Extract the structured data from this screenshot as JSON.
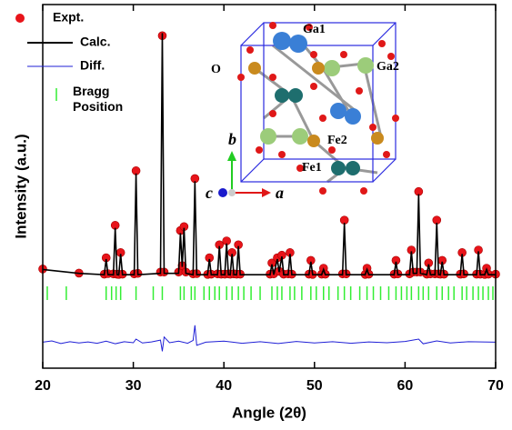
{
  "chart_data": {
    "type": "line",
    "xlabel": "Angle (2θ)",
    "ylabel": "Intensity (a.u.)",
    "xlim": [
      20,
      70
    ],
    "xticks": [
      20,
      30,
      40,
      50,
      60,
      70
    ],
    "ylim": [
      -35,
      105
    ],
    "series": [
      {
        "name": "Expt.",
        "type": "scatter",
        "color": "#e8141a",
        "x": [
          20,
          24,
          26.8,
          27.0,
          27.2,
          27.8,
          28.0,
          28.2,
          28.4,
          28.6,
          28.8,
          30.1,
          30.3,
          30.5,
          33.0,
          33.2,
          33.4,
          35.0,
          35.2,
          35.4,
          35.6,
          35.8,
          36.6,
          36.8,
          37.0,
          38.2,
          38.4,
          38.6,
          39.3,
          39.5,
          39.7,
          40.1,
          40.3,
          40.5,
          40.7,
          40.9,
          41.1,
          41.4,
          41.6,
          41.8,
          45.1,
          45.3,
          45.5,
          45.9,
          46.1,
          46.4,
          46.6,
          47.1,
          47.3,
          47.5,
          49.4,
          49.6,
          49.8,
          50.8,
          51.0,
          51.2,
          53.1,
          53.3,
          53.5,
          55.6,
          55.8,
          56.0,
          58.8,
          59.0,
          59.2,
          60.5,
          60.7,
          60.9,
          61.3,
          61.5,
          61.7,
          62.4,
          62.6,
          62.8,
          63.3,
          63.5,
          63.7,
          63.9,
          64.1,
          64.3,
          66.1,
          66.3,
          66.5,
          67.9,
          68.1,
          68.3,
          68.8,
          69.0,
          69.2,
          70
        ],
        "values": [
          3.2,
          1.6,
          1.2,
          7.5,
          1.4,
          1.3,
          20,
          1.2,
          1.1,
          9.5,
          1.2,
          1.3,
          41,
          1.5,
          2,
          93,
          2,
          2,
          18,
          4.5,
          19.5,
          2,
          1.3,
          38,
          1.4,
          1.1,
          7.5,
          1.2,
          1.3,
          12.5,
          1.2,
          1.2,
          14,
          1.3,
          1.2,
          9.5,
          1.3,
          1.2,
          12.5,
          1.2,
          1.2,
          5.5,
          1.3,
          7.5,
          2.3,
          8.5,
          1.2,
          1.3,
          9.5,
          1.2,
          1.2,
          6.5,
          1.1,
          1.2,
          3.5,
          1.2,
          1.3,
          22,
          1.3,
          1.1,
          3.5,
          1.2,
          1.2,
          6.5,
          1.3,
          1.3,
          10.5,
          2,
          2,
          33,
          2,
          1.2,
          5.5,
          1.3,
          1.3,
          22,
          1.3,
          1.2,
          6.5,
          1.2,
          1.2,
          9.5,
          1.3,
          1.2,
          10.5,
          1.2,
          1.1,
          3.5,
          1.2,
          1.2
        ]
      },
      {
        "name": "Calc.",
        "color": "#000000",
        "x": [
          20,
          24,
          26.8,
          27.0,
          27.2,
          27.8,
          28.0,
          28.2,
          28.4,
          28.6,
          28.8,
          30.1,
          30.3,
          30.5,
          33.0,
          33.2,
          33.4,
          35.0,
          35.2,
          35.4,
          35.6,
          35.8,
          36.6,
          36.8,
          37.0,
          38.2,
          38.4,
          38.6,
          39.3,
          39.5,
          39.7,
          40.1,
          40.3,
          40.5,
          40.7,
          40.9,
          41.1,
          41.4,
          41.6,
          41.8,
          45.1,
          45.3,
          45.5,
          45.9,
          46.1,
          46.4,
          46.6,
          47.1,
          47.3,
          47.5,
          49.4,
          49.6,
          49.8,
          50.8,
          51.0,
          51.2,
          53.1,
          53.3,
          53.5,
          55.6,
          55.8,
          56.0,
          58.8,
          59.0,
          59.2,
          60.5,
          60.7,
          60.9,
          61.3,
          61.5,
          61.7,
          62.4,
          62.6,
          62.8,
          63.3,
          63.5,
          63.7,
          63.9,
          64.1,
          64.3,
          66.1,
          66.3,
          66.5,
          67.9,
          68.1,
          68.3,
          68.8,
          69.0,
          69.2,
          70
        ],
        "values": [
          3,
          1.5,
          1,
          7,
          1,
          1,
          19,
          1,
          1,
          9,
          1,
          1,
          40,
          1,
          1.5,
          94,
          1.5,
          1.5,
          17,
          4,
          19,
          1.5,
          1,
          37,
          1,
          1,
          7,
          1,
          1,
          12,
          1,
          1,
          13,
          1,
          1,
          9,
          1,
          1,
          12,
          1,
          1,
          5,
          1,
          7,
          2,
          8,
          1,
          1,
          9,
          1,
          1,
          6,
          1,
          1,
          3,
          1,
          1,
          21,
          1,
          1,
          3,
          1,
          1,
          6,
          1,
          1,
          10,
          1.5,
          1.5,
          32,
          1.5,
          1,
          5,
          1,
          1,
          21,
          1,
          1,
          6,
          1,
          1,
          9,
          1,
          1,
          10,
          1,
          1,
          3,
          1,
          1
        ]
      },
      {
        "name": "Diff.",
        "color": "#1f1fd6",
        "x": [
          20,
          21,
          22,
          23,
          24,
          25,
          26,
          27,
          28,
          29,
          30,
          30.3,
          31,
          32,
          33,
          33.2,
          33.4,
          34,
          35,
          36,
          36.6,
          36.8,
          37,
          38,
          40,
          42,
          44,
          46,
          48,
          50,
          52,
          54,
          56,
          58,
          60,
          61.5,
          62,
          63.5,
          65,
          67,
          70
        ],
        "values": [
          -25,
          -24.5,
          -25.5,
          -24.8,
          -25.3,
          -24.9,
          -25.4,
          -24.6,
          -25.6,
          -24.8,
          -25.2,
          -23.8,
          -25.3,
          -24.9,
          -24.2,
          -28.5,
          -23,
          -25.2,
          -24.6,
          -25.4,
          -24.3,
          -18.5,
          -26.2,
          -25,
          -24.6,
          -25.4,
          -24.8,
          -25.5,
          -24.7,
          -25.3,
          -24.8,
          -25.4,
          -24.9,
          -25.2,
          -24.7,
          -23.8,
          -25.6,
          -24.5,
          -25.3,
          -24.8,
          -25
        ]
      },
      {
        "name": "Bragg Position",
        "type": "bragg",
        "color": "#33ee33",
        "x": [
          20.5,
          22.6,
          27.0,
          27.6,
          28.1,
          28.6,
          30.3,
          32.2,
          33.2,
          35.2,
          35.6,
          36.4,
          36.8,
          37.8,
          38.4,
          39.0,
          39.5,
          40.3,
          40.9,
          41.6,
          42.2,
          43.0,
          44.0,
          45.3,
          45.9,
          46.4,
          47.3,
          47.8,
          48.6,
          49.6,
          50.2,
          51.0,
          51.6,
          52.6,
          53.3,
          54.0,
          55.0,
          55.8,
          56.5,
          57.3,
          58.2,
          59.0,
          59.6,
          60.2,
          60.7,
          61.5,
          62.0,
          62.6,
          63.5,
          64.1,
          64.8,
          65.4,
          66.3,
          66.8,
          67.5,
          68.1,
          68.6,
          69.2,
          69.7
        ]
      }
    ]
  },
  "inset": {
    "labels": [
      "Ga1",
      "Ga2",
      "O",
      "Fe2",
      "Fe1"
    ],
    "axes": [
      "a",
      "b",
      "c"
    ]
  }
}
